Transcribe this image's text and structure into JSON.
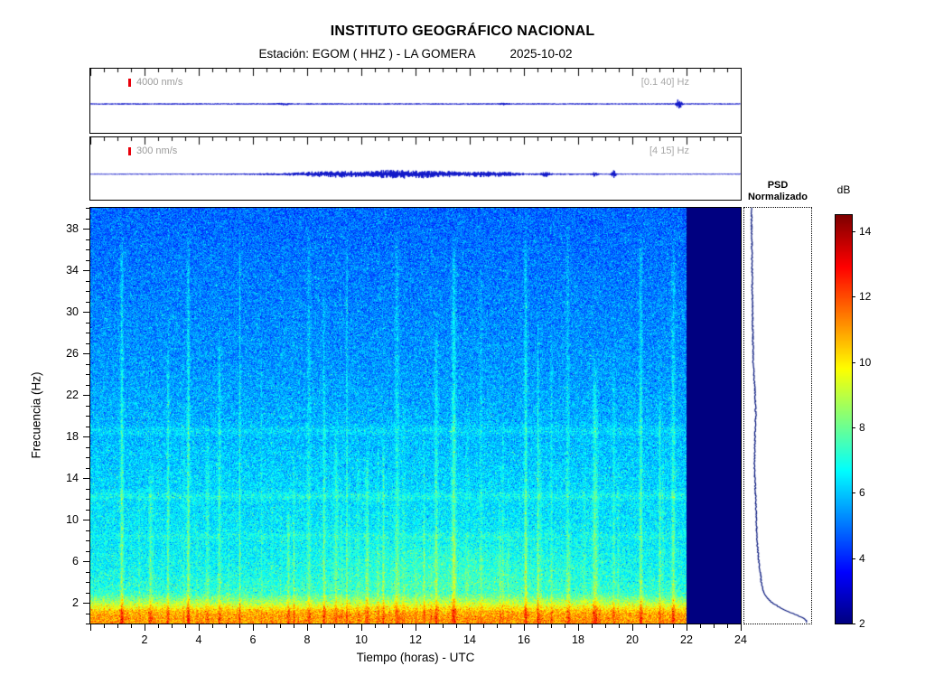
{
  "header": {
    "title": "INSTITUTO GEOGRÁFICO NACIONAL",
    "station_label": "Estación:  EGOM ( HHZ ) - LA GOMERA",
    "date": "2025-10-02"
  },
  "traces": [
    {
      "scale_label": "4000 nm/s",
      "band_label": "[0.1 40] Hz"
    },
    {
      "scale_label": "300 nm/s",
      "band_label": "[4 15] Hz"
    }
  ],
  "axes": {
    "xlabel": "Tiempo (horas) - UTC",
    "ylabel": "Frecuencia (Hz)",
    "x_range": [
      0,
      24
    ],
    "y_range": [
      0,
      40
    ],
    "xticks": [
      2,
      4,
      6,
      8,
      10,
      12,
      14,
      16,
      18,
      20,
      22,
      24
    ],
    "yticks": [
      2,
      6,
      10,
      14,
      18,
      22,
      26,
      30,
      34,
      38
    ],
    "x_minor_step": 0.5,
    "y_minor_step": 1
  },
  "psd": {
    "title_line1": "PSD",
    "title_line2": "Normalizado"
  },
  "colorbar": {
    "label": "dB",
    "ticks": [
      2,
      4,
      6,
      8,
      10,
      12,
      14
    ],
    "min": 2,
    "max": 14.5
  },
  "chart_data": [
    {
      "type": "line",
      "name": "seismogram-broadband",
      "band_hz": [
        0.1,
        40
      ],
      "scale_nm_s": 4000,
      "x_range_hours": [
        0,
        24
      ],
      "base_amp": 0.7,
      "bursts": [
        [
          7.1,
          0.9,
          0.15
        ],
        [
          15.2,
          0.9,
          0.12
        ],
        [
          21.7,
          5.5,
          0.07
        ]
      ],
      "description": "Nearly flat broadband trace; small transient near 21.7 h"
    },
    {
      "type": "line",
      "name": "seismogram-filtered",
      "band_hz": [
        4,
        15
      ],
      "scale_nm_s": 300,
      "x_range_hours": [
        0,
        24
      ],
      "base_amp": 0.5,
      "bursts": [
        [
          11.5,
          2.0,
          3.2
        ],
        [
          8.3,
          1.4,
          0.5
        ],
        [
          9.3,
          1.9,
          0.35
        ],
        [
          10.6,
          1.5,
          0.4
        ],
        [
          11.4,
          2.1,
          0.45
        ],
        [
          12.3,
          1.7,
          0.4
        ],
        [
          13.2,
          1.1,
          0.4
        ],
        [
          14.5,
          1.7,
          0.35
        ],
        [
          15.3,
          1.0,
          0.3
        ],
        [
          16.8,
          2.3,
          0.1
        ],
        [
          18.6,
          2.4,
          0.07
        ],
        [
          19.3,
          4.5,
          0.06
        ]
      ],
      "description": "Cultural/daytime activity ~6-17 h; isolated spikes near 16.8, 18.6 and 19.3 h"
    },
    {
      "type": "heatmap",
      "name": "spectrogram",
      "xlabel": "Tiempo (horas) - UTC",
      "ylabel": "Frecuencia (Hz)",
      "x_range": [
        0,
        24
      ],
      "y_range": [
        0,
        40
      ],
      "colormap": "jet",
      "value_range_db": [
        2,
        14.5
      ],
      "data_end_hour": 22,
      "freq_profile_db": [
        [
          0.3,
          11.0
        ],
        [
          0.8,
          10.9
        ],
        [
          1.2,
          10.6
        ],
        [
          2,
          8.8
        ],
        [
          3,
          7.2
        ],
        [
          5,
          6.8
        ],
        [
          8,
          6.5
        ],
        [
          12,
          6.3
        ],
        [
          16,
          6.0
        ],
        [
          20,
          5.7
        ],
        [
          25,
          5.4
        ],
        [
          30,
          5.2
        ],
        [
          35,
          5.0
        ],
        [
          40,
          4.8
        ]
      ],
      "bright_bands": [
        [
          8.4,
          0.3,
          0.25
        ],
        [
          12.3,
          0.5,
          0.25
        ],
        [
          18.6,
          0.45,
          0.3
        ]
      ],
      "day_bump": {
        "t_center": 13,
        "t_sigma": 3.5,
        "f_center": 5,
        "f_sigma": 2.2,
        "amp": 0.55
      },
      "transient_hours": [
        1.15,
        2.2,
        2.85,
        3.6,
        4.3,
        4.75,
        5.5,
        6.3,
        7.3,
        8.05,
        8.6,
        9.05,
        9.45,
        10.2,
        10.8,
        11.3,
        12.3,
        12.75,
        13.4,
        14.4,
        15.1,
        16.05,
        16.5,
        17.0,
        17.6,
        18.6,
        19.3,
        20.3,
        21.0,
        21.5
      ],
      "note": "Strong microseism band below 2 Hz (~9-11 dB, yellow/orange); cyan-blue background 3-40 Hz (~5-7 dB) with vertical transient streaks; no data (dark navy) from 22 to 24 h"
    },
    {
      "type": "line",
      "name": "psd-normalized",
      "title": "PSD Normalizado",
      "points_freq_vs_norm": [
        [
          40,
          0.1
        ],
        [
          35,
          0.11
        ],
        [
          30,
          0.12
        ],
        [
          25,
          0.13
        ],
        [
          22,
          0.16
        ],
        [
          20,
          0.17
        ],
        [
          18,
          0.16
        ],
        [
          15,
          0.15
        ],
        [
          12,
          0.17
        ],
        [
          10,
          0.18
        ],
        [
          8,
          0.19
        ],
        [
          6,
          0.22
        ],
        [
          5,
          0.24
        ],
        [
          4,
          0.26
        ],
        [
          3,
          0.3
        ],
        [
          2.5,
          0.35
        ],
        [
          2,
          0.42
        ],
        [
          1.5,
          0.55
        ],
        [
          1.0,
          0.72
        ],
        [
          0.7,
          0.85
        ],
        [
          0.4,
          0.95
        ],
        [
          0.2,
          1.0
        ]
      ]
    }
  ]
}
